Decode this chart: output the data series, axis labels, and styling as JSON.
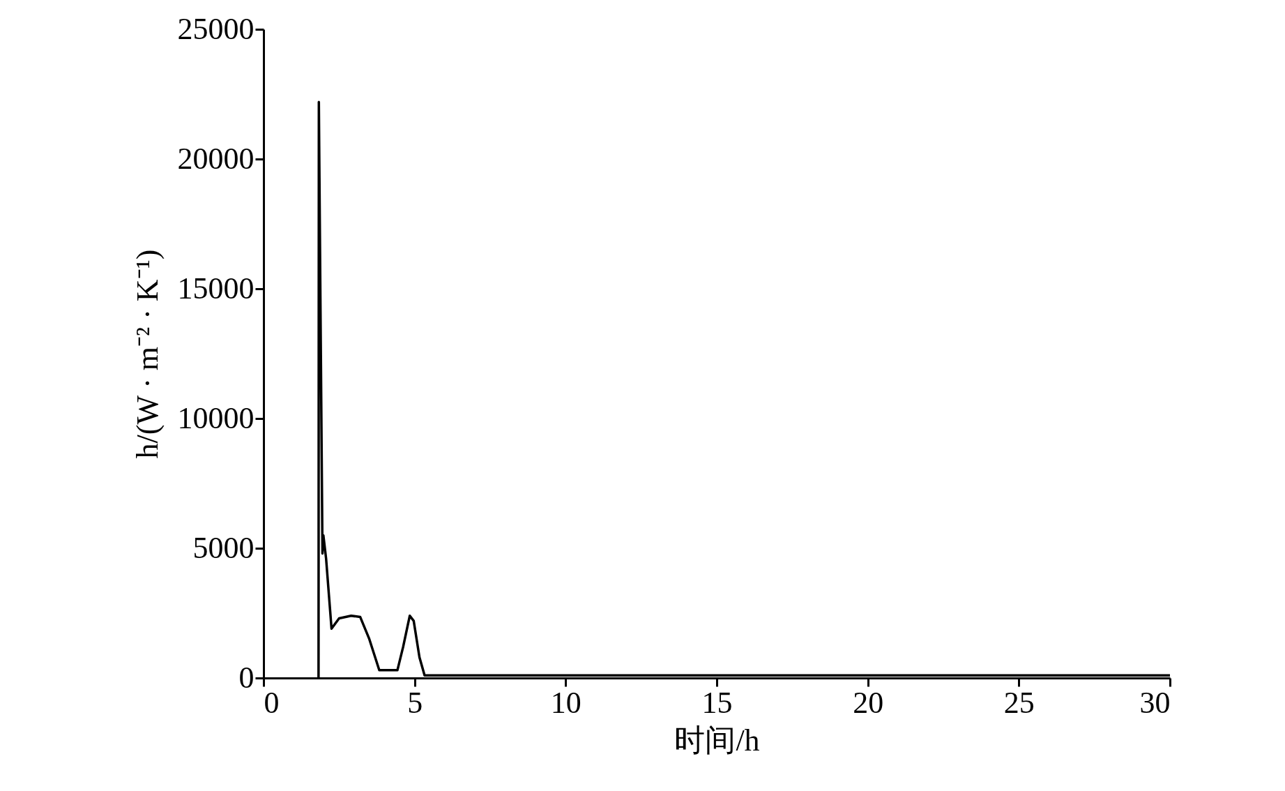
{
  "chart_data": {
    "type": "line",
    "xlabel": "时间/h",
    "ylabel": "h/(W · m⁻² · K⁻¹)",
    "x": [
      1.82,
      1.83,
      1.95,
      1.98,
      2.07,
      2.25,
      2.5,
      2.9,
      3.2,
      3.5,
      3.83,
      4.43,
      4.62,
      4.84,
      4.97,
      5.16,
      5.33,
      30
    ],
    "series": [
      {
        "color": "#000000",
        "values": [
          0,
          22200,
          4800,
          5500,
          4600,
          1900,
          2300,
          2400,
          2350,
          1500,
          300,
          300,
          1200,
          2400,
          2200,
          800,
          100,
          100
        ]
      }
    ],
    "xlim": [
      0,
      30
    ],
    "xticks": [
      0,
      5,
      10,
      15,
      20,
      25,
      30
    ],
    "ylim": [
      0,
      25000
    ],
    "yticks": [
      0,
      5000,
      10000,
      15000,
      20000,
      25000
    ],
    "grid": false,
    "marker": "none",
    "line_style": "solid"
  }
}
